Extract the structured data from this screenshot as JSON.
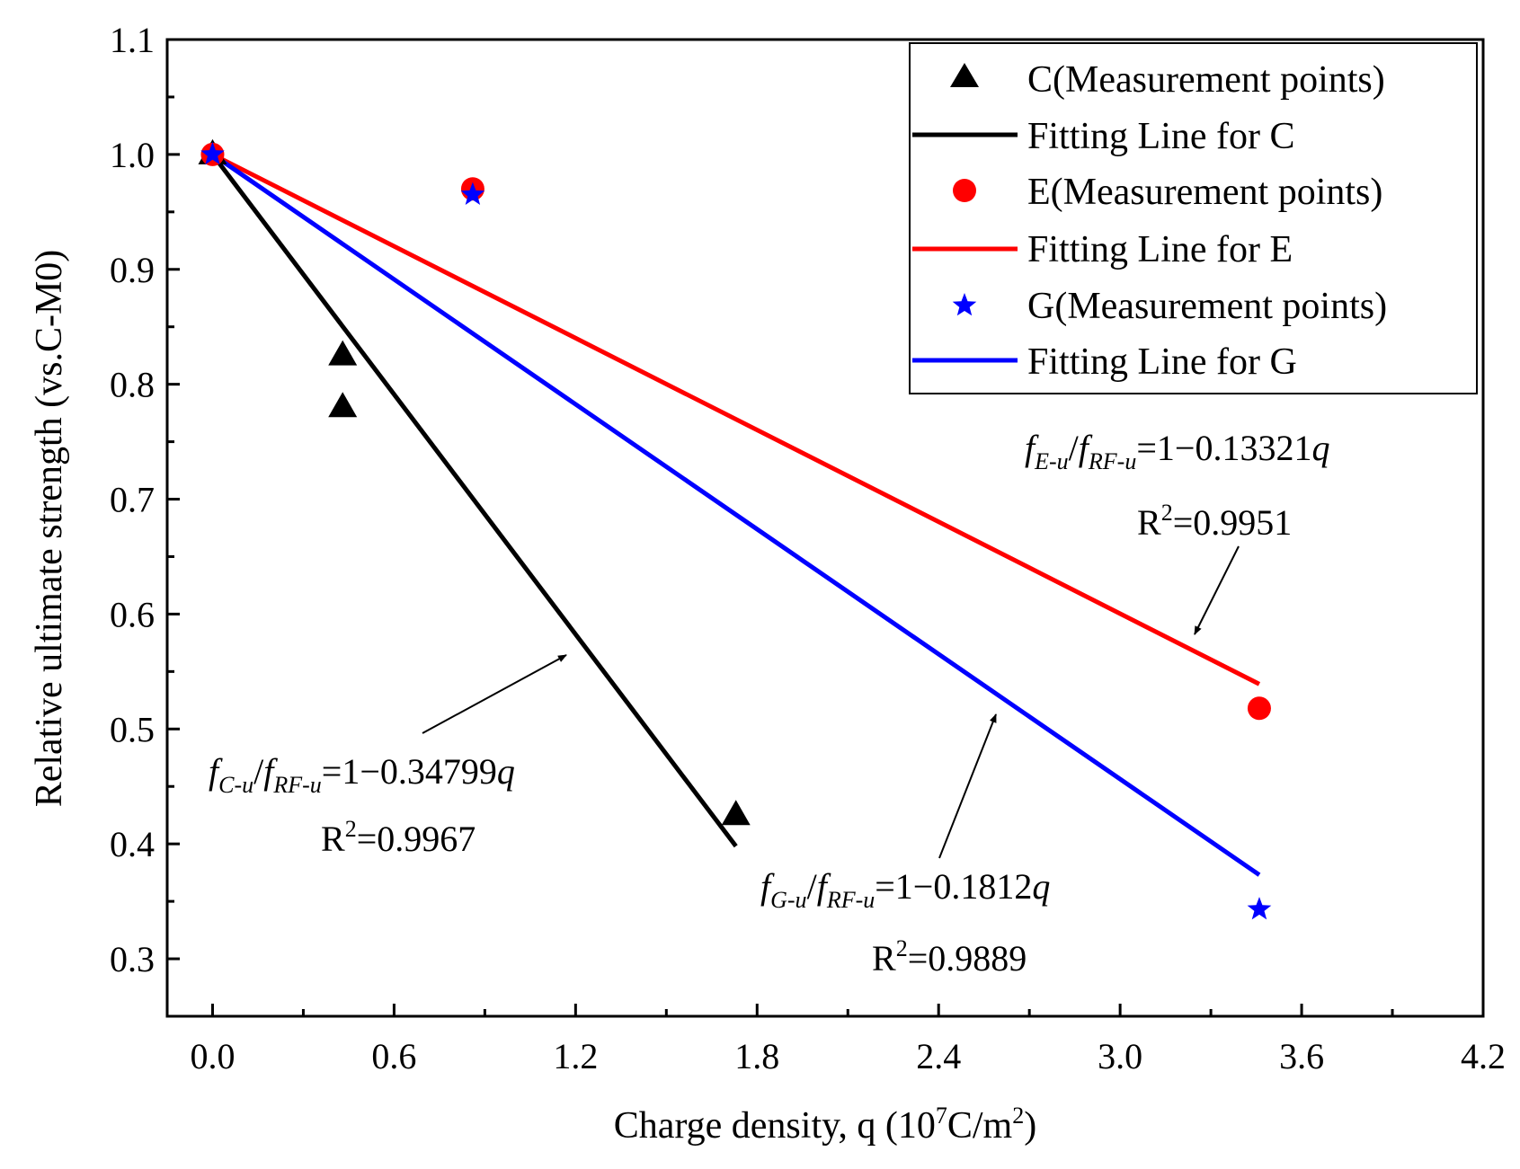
{
  "chart_data": {
    "type": "scatter",
    "xlabel": {
      "main": "Charge density, q (10",
      "sup1": "7",
      "mid": "C/m",
      "sup2": "2",
      "end": ")"
    },
    "ylabel": "Relative ultimate strength (vs.C-M0)",
    "xlim": [
      -0.15,
      4.2
    ],
    "ylim": [
      0.25,
      1.1
    ],
    "xticks": [
      0.0,
      0.6,
      1.2,
      1.8,
      2.4,
      3.0,
      3.6,
      4.2
    ],
    "xtick_labels": [
      "0.0",
      "0.6",
      "1.2",
      "1.8",
      "2.4",
      "3.0",
      "3.6",
      "4.2"
    ],
    "yticks": [
      0.3,
      0.4,
      0.5,
      0.6,
      0.7,
      0.8,
      0.9,
      1.0,
      1.1
    ],
    "ytick_labels": [
      "0.3",
      "0.4",
      "0.5",
      "0.6",
      "0.7",
      "0.8",
      "0.9",
      "1.0",
      "1.1"
    ],
    "grid": false,
    "legend_position": "top-right",
    "series": [
      {
        "name": "C(Measurement points)",
        "kind": "points",
        "marker": "triangle",
        "color": "#000000",
        "x": [
          0.0,
          0.43,
          0.43,
          1.73
        ],
        "y": [
          1.0,
          0.825,
          0.78,
          0.425
        ]
      },
      {
        "name": "Fitting Line for C",
        "kind": "line",
        "color": "#000000",
        "slope": -0.34799,
        "x_range": [
          0.0,
          1.73
        ]
      },
      {
        "name": "E(Measurement points)",
        "kind": "points",
        "marker": "circle",
        "color": "#ff0000",
        "x": [
          0.0,
          0.86,
          3.46
        ],
        "y": [
          1.0,
          0.97,
          0.518
        ]
      },
      {
        "name": "Fitting Line for E",
        "kind": "line",
        "color": "#ff0000",
        "slope": -0.13321,
        "x_range": [
          0.0,
          3.46
        ]
      },
      {
        "name": "G(Measurement points)",
        "kind": "points",
        "marker": "star",
        "color": "#0000ff",
        "x": [
          0.0,
          0.86,
          3.46
        ],
        "y": [
          1.0,
          0.965,
          0.343
        ]
      },
      {
        "name": "Fitting Line for G",
        "kind": "line",
        "color": "#0000ff",
        "slope": -0.1812,
        "x_range": [
          0.0,
          3.46
        ]
      }
    ],
    "annotations": [
      {
        "id": "C",
        "f1": "f",
        "s1": "C-u",
        "sep": "/",
        "f2": "f",
        "s2": "RF-u",
        "rhs": "=1−0.34799",
        "q": "q",
        "r2_label": "R",
        "r2_sup": "2",
        "r2_value": "=0.9967"
      },
      {
        "id": "E",
        "f1": "f",
        "s1": "E-u",
        "sep": "/",
        "f2": "f",
        "s2": "RF-u",
        "rhs": "=1−0.13321",
        "q": "q",
        "r2_label": "R",
        "r2_sup": "2",
        "r2_value": "=0.9951"
      },
      {
        "id": "G",
        "f1": "f",
        "s1": "G-u",
        "sep": "/",
        "f2": "f",
        "s2": "RF-u",
        "rhs": "=1−0.1812",
        "q": "q",
        "r2_label": "R",
        "r2_sup": "2",
        "r2_value": "=0.9889"
      }
    ]
  }
}
